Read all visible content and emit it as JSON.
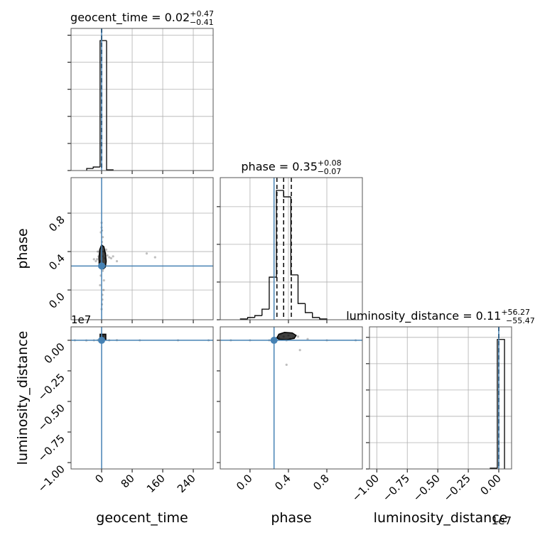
{
  "chart_data": [
    {
      "type": "histogram",
      "title": "geocent_time = 0.02",
      "title_sup": "+0.47",
      "title_sub": "−0.41",
      "bins": [
        -39,
        -22,
        -4,
        13,
        30
      ],
      "counts": [
        0.015,
        0.026,
        0.96,
        0.005
      ],
      "xlim": [
        -80,
        292
      ],
      "xticks": [
        0,
        80,
        160,
        240
      ],
      "ylim": [
        0,
        1.05
      ],
      "yticks": [
        0,
        0.2,
        0.4,
        0.6,
        0.8,
        1.0
      ],
      "quantiles": [
        -0.39,
        0.02,
        0.49
      ],
      "truth": 0,
      "truth_color": "#4682b4",
      "color": "#000000",
      "grid": true
    },
    {
      "type": "scatter",
      "y_label": "phase",
      "x": [
        -3,
        2,
        5,
        -6,
        1,
        8,
        -2,
        4,
        0,
        3,
        -8,
        10,
        -12,
        15,
        20,
        -15,
        25,
        6,
        -4,
        2,
        1,
        -1,
        3,
        0,
        30,
        -20,
        40,
        12,
        -10,
        118,
        140,
        5,
        2,
        -2,
        0,
        1
      ],
      "y": [
        0.3,
        0.35,
        0.4,
        0.28,
        0.5,
        0.33,
        0.6,
        0.25,
        0.7,
        0.2,
        0.35,
        0.38,
        0.32,
        0.36,
        0.34,
        0.3,
        0.33,
        0.1,
        0.05,
        -0.05,
        -0.15,
        0.45,
        0.55,
        0.65,
        0.35,
        0.32,
        0.3,
        0.42,
        0.4,
        0.38,
        0.34,
        0.0,
        -0.1,
        0.15,
        -0.2,
        0.62
      ],
      "contour": {
        "x": [
          -6,
          -7,
          -5,
          0,
          6,
          10,
          12,
          10,
          5,
          -2,
          -6
        ],
        "y": [
          0.25,
          0.33,
          0.42,
          0.47,
          0.45,
          0.38,
          0.3,
          0.24,
          0.22,
          0.22,
          0.25
        ]
      },
      "xlim": [
        -80,
        292
      ],
      "xticks": [
        0,
        80,
        160,
        240
      ],
      "ylim": [
        -0.31,
        1.17
      ],
      "yticks": [
        {
          "value": 0,
          "label": "0.0"
        },
        0.4,
        0.8
      ],
      "truth_x": 0,
      "truth_y": 0.25,
      "truth_color": "#4682b4",
      "color": "#000000",
      "grid": true
    },
    {
      "type": "histogram",
      "title": "phase = 0.35",
      "title_sup": "+0.08",
      "title_sub": "−0.07",
      "bins": [
        -0.1,
        -0.025,
        0.05,
        0.125,
        0.2,
        0.275,
        0.35,
        0.425,
        0.5,
        0.575,
        0.65,
        0.725,
        0.8
      ],
      "counts": [
        0.02,
        0.06,
        0.11,
        0.28,
        1.13,
        3.43,
        3.26,
        1.19,
        0.43,
        0.19,
        0.06,
        0.02
      ],
      "xlim": [
        -0.31,
        1.17
      ],
      "xticks": [
        0,
        0.4,
        0.8
      ],
      "ylim": [
        0,
        3.77
      ],
      "yticks": [
        0,
        1,
        2,
        3
      ],
      "quantiles": [
        0.28,
        0.35,
        0.43
      ],
      "truth": 0.25,
      "truth_color": "#4682b4",
      "color": "#000000",
      "grid": true
    },
    {
      "type": "scatter",
      "x_label": "geocent_time",
      "y_label": "luminosity_distance",
      "y_offset_label": "1e7",
      "x": [
        -20,
        -10,
        -5,
        0,
        5,
        10,
        20,
        40,
        -40,
        0,
        3,
        -70,
        100,
        200,
        280
      ],
      "y": [
        0,
        0.001,
        -0.002,
        0.02,
        0.04,
        0.01,
        0,
        0.001,
        -0.001,
        -0.01,
        0.03,
        0,
        0,
        0,
        0
      ],
      "contour": {
        "x": [
          -4,
          -4,
          11,
          11,
          -4
        ],
        "y": [
          0.005,
          0.05,
          0.05,
          0.005,
          0.005
        ]
      },
      "xlim": [
        -80,
        292
      ],
      "xticks": [
        0,
        80,
        160,
        240
      ],
      "ylim": [
        -1.052,
        0.11
      ],
      "yticks": [
        {
          "value": -1,
          "label": "−1.00"
        },
        {
          "value": -0.75,
          "label": "−0.75"
        },
        {
          "value": -0.5,
          "label": "−0.50"
        },
        {
          "value": -0.25,
          "label": "−0.25"
        },
        {
          "value": 0,
          "label": "0.00"
        }
      ],
      "truth_x": 0,
      "truth_y": 0,
      "truth_color": "#4682b4",
      "color": "#000000",
      "grid": false
    },
    {
      "type": "scatter",
      "x_label": "phase",
      "x": [
        0.3,
        0.35,
        0.4,
        0.45,
        0.32,
        0.38,
        0.42,
        0.5,
        0.28,
        0.38,
        0.52,
        0.0,
        -0.2,
        0.8,
        1.1,
        0.6,
        0.2
      ],
      "y": [
        0.02,
        0.03,
        0.04,
        0.02,
        0.05,
        0.0,
        0.01,
        0.03,
        0.02,
        -0.2,
        -0.08,
        0,
        0,
        0,
        0,
        0.01,
        0.0
      ],
      "contour": {
        "x": [
          0.28,
          0.3,
          0.36,
          0.44,
          0.48,
          0.46,
          0.38,
          0.3,
          0.28
        ],
        "y": [
          0.02,
          0.05,
          0.065,
          0.06,
          0.04,
          0.015,
          0.005,
          0.008,
          0.02
        ]
      },
      "xlim": [
        -0.31,
        1.17
      ],
      "xticks": [
        {
          "value": 0,
          "label": "0.0"
        },
        0.4,
        0.8
      ],
      "ylim": [
        -1.052,
        0.11
      ],
      "yticks": [
        -1,
        -0.75,
        -0.5,
        -0.25,
        0
      ],
      "truth_x": 0.25,
      "truth_y": 0,
      "truth_color": "#4682b4",
      "color": "#000000",
      "grid": false
    },
    {
      "type": "histogram",
      "title": "luminosity_distance = 0.11",
      "title_sup": "+56.27",
      "title_sub": "−55.47",
      "x_label": "luminosity_distance",
      "x_offset_label": "1e7",
      "bins": [
        -0.07,
        -0.012,
        0.047
      ],
      "counts": [
        0.03,
        4.92
      ],
      "xlim": [
        -1.06,
        0.105
      ],
      "xticks": [
        {
          "value": -1,
          "label": "−1.00"
        },
        {
          "value": -0.75,
          "label": "−0.75"
        },
        {
          "value": -0.5,
          "label": "−0.50"
        },
        {
          "value": -0.25,
          "label": "−0.25"
        },
        {
          "value": 0,
          "label": "0.00"
        }
      ],
      "ylim": [
        0,
        5.4
      ],
      "yticks": [
        0,
        1,
        2,
        3,
        4,
        5
      ],
      "quantiles": [
        -5.536e-06,
        1.1e-08,
        5.638e-06
      ],
      "truth": 0,
      "truth_color": "#4682b4",
      "color": "#000000",
      "grid": true
    }
  ]
}
